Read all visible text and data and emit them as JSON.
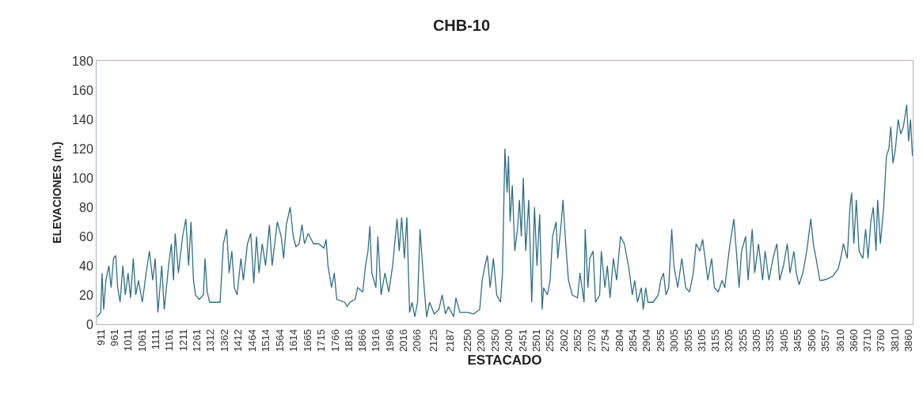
{
  "chart_data": {
    "type": "line",
    "title": "CHB-10",
    "xlabel": "ESTACADO",
    "ylabel": "ELEVACIONES (m.)",
    "grid": false,
    "marker": "none",
    "line_style": "solid",
    "xlim": [
      895,
      3875
    ],
    "ylim": [
      0,
      180
    ],
    "yticks": [
      0,
      20,
      40,
      60,
      80,
      100,
      120,
      140,
      160,
      180
    ],
    "xticks": [
      911,
      961,
      1011,
      1061,
      1111,
      1161,
      1211,
      1261,
      1312,
      1362,
      1412,
      1464,
      1514,
      1564,
      1614,
      1665,
      1715,
      1766,
      1816,
      1866,
      1916,
      1966,
      2016,
      2066,
      2125,
      2187,
      2250,
      2300,
      2350,
      2400,
      2451,
      2501,
      2552,
      2602,
      2652,
      2703,
      2754,
      2804,
      2854,
      2904,
      2955,
      3005,
      3055,
      3105,
      3155,
      3205,
      3255,
      3305,
      3355,
      3405,
      3455,
      3506,
      3557,
      3610,
      3660,
      3710,
      3760,
      3810,
      3860
    ],
    "series": [
      {
        "color": "#2e6e86",
        "x": [
          897,
          910,
          915,
          921,
          929,
          940,
          948,
          957,
          965,
          972,
          981,
          991,
          1000,
          1010,
          1019,
          1029,
          1038,
          1048,
          1062,
          1076,
          1088,
          1100,
          1109,
          1119,
          1133,
          1142,
          1158,
          1168,
          1176,
          1182,
          1194,
          1209,
          1221,
          1231,
          1240,
          1249,
          1256,
          1270,
          1285,
          1291,
          1299,
          1308,
          1346,
          1358,
          1370,
          1379,
          1389,
          1398,
          1408,
          1422,
          1431,
          1446,
          1458,
          1469,
          1479,
          1488,
          1500,
          1512,
          1526,
          1536,
          1555,
          1569,
          1578,
          1588,
          1602,
          1613,
          1623,
          1635,
          1645,
          1654,
          1668,
          1687,
          1706,
          1725,
          1733,
          1740,
          1753,
          1763,
          1772,
          1801,
          1810,
          1820,
          1839,
          1848,
          1867,
          1877,
          1886,
          1893,
          1900,
          1915,
          1922,
          1934,
          1948,
          1962,
          1976,
          1992,
          2000,
          2009,
          2019,
          2028,
          2038,
          2047,
          2057,
          2067,
          2076,
          2089,
          2100,
          2111,
          2128,
          2145,
          2157,
          2169,
          2180,
          2199,
          2207,
          2222,
          2252,
          2271,
          2294,
          2303,
          2313,
          2322,
          2332,
          2344,
          2356,
          2370,
          2377,
          2386,
          2394,
          2399,
          2405,
          2413,
          2422,
          2432,
          2439,
          2446,
          2453,
          2462,
          2473,
          2484,
          2494,
          2503,
          2513,
          2522,
          2527,
          2541,
          2551,
          2560,
          2573,
          2579,
          2592,
          2598,
          2608,
          2618,
          2632,
          2651,
          2660,
          2675,
          2679,
          2689,
          2696,
          2708,
          2717,
          2732,
          2738,
          2751,
          2760,
          2770,
          2782,
          2794,
          2808,
          2822,
          2837,
          2841,
          2851,
          2860,
          2870,
          2884,
          2891,
          2900,
          2908,
          2927,
          2946,
          2955,
          2965,
          2974,
          2984,
          2995,
          3003,
          3017,
          3032,
          3046,
          3060,
          3074,
          3084,
          3098,
          3108,
          3117,
          3127,
          3141,
          3151,
          3165,
          3179,
          3189,
          3198,
          3208,
          3222,
          3231,
          3241,
          3250,
          3265,
          3274,
          3289,
          3298,
          3312,
          3327,
          3336,
          3350,
          3365,
          3379,
          3389,
          3403,
          3417,
          3427,
          3441,
          3450,
          3460,
          3474,
          3488,
          3503,
          3512,
          3522,
          3536,
          3546,
          3565,
          3584,
          3603,
          3612,
          3622,
          3636,
          3646,
          3652,
          3660,
          3669,
          3679,
          3693,
          3703,
          3712,
          3722,
          3731,
          3741,
          3747,
          3757,
          3769,
          3779,
          3788,
          3795,
          3803,
          3812,
          3822,
          3831,
          3841,
          3853,
          3860,
          3867,
          3874
        ],
        "values": [
          5,
          8,
          35,
          10,
          30,
          40,
          25,
          45,
          47,
          25,
          15,
          40,
          20,
          35,
          18,
          45,
          20,
          30,
          15,
          35,
          50,
          30,
          45,
          8,
          40,
          10,
          40,
          55,
          30,
          62,
          35,
          60,
          72,
          40,
          70,
          30,
          20,
          17,
          20,
          45,
          22,
          15,
          15,
          55,
          65,
          35,
          50,
          25,
          20,
          45,
          30,
          55,
          62,
          28,
          60,
          35,
          55,
          40,
          68,
          40,
          70,
          60,
          45,
          68,
          80,
          60,
          53,
          55,
          68,
          55,
          62,
          55,
          55,
          52,
          58,
          40,
          25,
          35,
          17,
          15,
          12,
          15,
          17,
          25,
          22,
          40,
          50,
          67,
          35,
          25,
          60,
          20,
          35,
          22,
          40,
          72,
          50,
          73,
          45,
          73,
          8,
          15,
          5,
          15,
          65,
          30,
          5,
          15,
          7,
          10,
          20,
          7,
          12,
          5,
          18,
          8,
          8,
          7,
          10,
          30,
          40,
          47,
          25,
          45,
          20,
          15,
          35,
          120,
          90,
          115,
          70,
          95,
          50,
          65,
          85,
          60,
          100,
          50,
          85,
          15,
          80,
          40,
          75,
          10,
          25,
          20,
          30,
          60,
          70,
          45,
          70,
          85,
          55,
          30,
          20,
          18,
          35,
          15,
          65,
          25,
          45,
          50,
          15,
          20,
          50,
          25,
          40,
          18,
          45,
          30,
          60,
          55,
          40,
          35,
          20,
          30,
          15,
          25,
          10,
          25,
          15,
          15,
          20,
          30,
          35,
          20,
          25,
          65,
          40,
          25,
          45,
          25,
          22,
          35,
          55,
          50,
          58,
          45,
          30,
          45,
          25,
          22,
          30,
          25,
          40,
          55,
          72,
          50,
          25,
          50,
          60,
          30,
          65,
          35,
          55,
          30,
          50,
          30,
          45,
          55,
          30,
          40,
          55,
          35,
          50,
          35,
          27,
          35,
          50,
          72,
          55,
          45,
          30,
          30,
          31,
          33,
          38,
          45,
          55,
          45,
          80,
          90,
          55,
          85,
          50,
          45,
          65,
          45,
          70,
          80,
          50,
          85,
          55,
          80,
          115,
          120,
          135,
          110,
          120,
          140,
          130,
          135,
          150,
          125,
          140,
          115
        ]
      }
    ]
  }
}
